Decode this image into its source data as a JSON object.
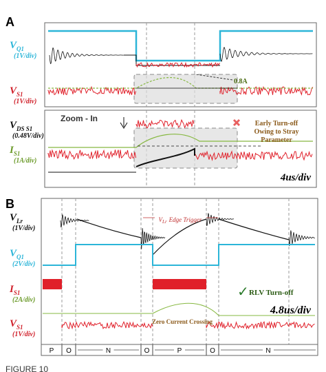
{
  "panel_a": {
    "label": "A",
    "time_scale": "4us/div",
    "zoom_text": "Zoom - In",
    "current_annotation": "0.8A",
    "note": [
      "Early Turn-off",
      "Owing to Stray",
      "Parameter"
    ],
    "signals": [
      {
        "symbol": "V",
        "sub": "Q1",
        "scale": "(1V/div)"
      },
      {
        "symbol": "V",
        "sub": "S1",
        "scale": "(1V/div)"
      },
      {
        "symbol": "V",
        "sub": "DS S1",
        "scale": "(0.48V/div)"
      },
      {
        "symbol": "I",
        "sub": "S1",
        "scale": "(1A/div)"
      }
    ]
  },
  "panel_b": {
    "label": "B",
    "time_scale": "4.8us/div",
    "trigger": {
      "symbol": "V",
      "sub": "Lr",
      "text": "Edge Trigger"
    },
    "turn_off": "RLV Turn-off",
    "crossing": "Zero Current Crossing",
    "signals": [
      {
        "symbol": "V",
        "sub": "Lr",
        "scale": "(1V/div)"
      },
      {
        "symbol": "V",
        "sub": "Q1",
        "scale": "(2V/div)"
      },
      {
        "symbol": "I",
        "sub": "S1",
        "scale": "(2A/div)"
      },
      {
        "symbol": "V",
        "sub": "S1",
        "scale": "(1V/div)"
      }
    ],
    "modes": [
      "P",
      "O",
      "N",
      "O",
      "P",
      "O",
      "N"
    ]
  },
  "caption": "FIGURE 10"
}
